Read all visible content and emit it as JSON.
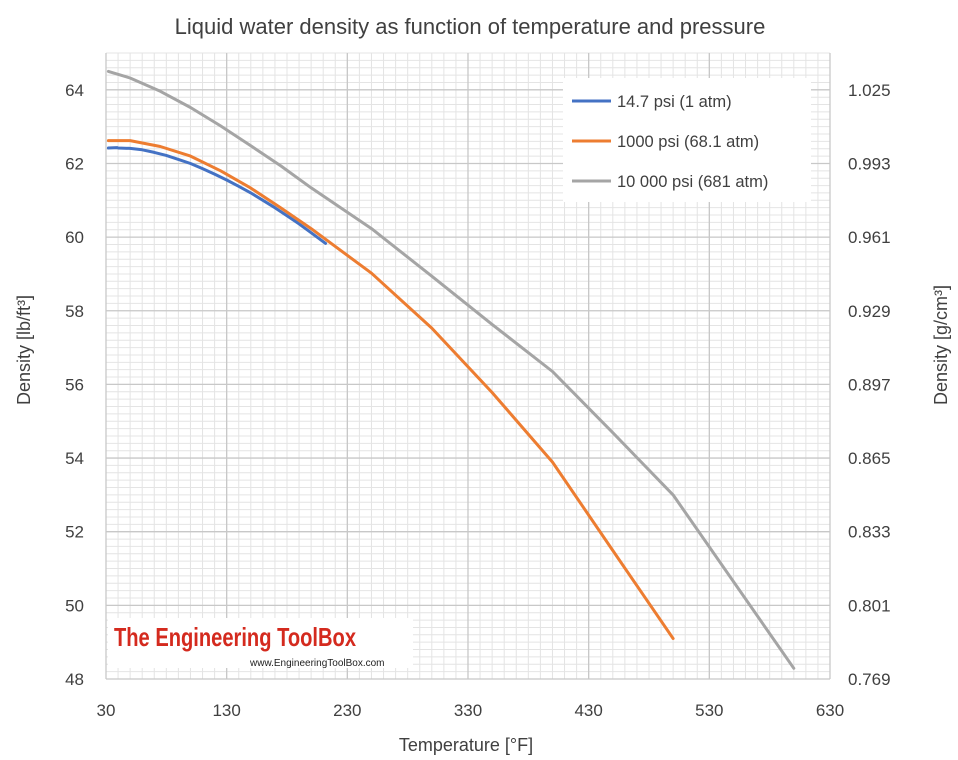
{
  "chart_data": {
    "type": "line",
    "title": "Liquid water density as function of temperature and pressure",
    "xlabel": "Temperature  [°F]",
    "ylabel": "Density  [lb/ft³]",
    "y2label": "Density [g/cm³]",
    "xlim": [
      30,
      630
    ],
    "ylim": [
      48,
      65
    ],
    "x_ticks": [
      30,
      130,
      230,
      330,
      430,
      530,
      630
    ],
    "y_ticks": [
      48,
      50,
      52,
      54,
      56,
      58,
      60,
      62,
      64
    ],
    "y2_tick_labels": [
      "0.769",
      "0.801",
      "0.833",
      "0.865",
      "0.897",
      "0.929",
      "0.961",
      "0.993",
      "1.025"
    ],
    "grid": true,
    "legend_position": "top-right",
    "series": [
      {
        "name": "14.7 psi (1 atm)",
        "color": "#4472c4",
        "x": [
          32,
          39,
          40,
          50,
          60,
          70,
          80,
          90,
          100,
          110,
          120,
          130,
          140,
          150,
          160,
          170,
          180,
          190,
          200,
          212
        ],
        "y": [
          62.42,
          62.43,
          62.42,
          62.41,
          62.37,
          62.3,
          62.22,
          62.11,
          62.0,
          61.86,
          61.71,
          61.55,
          61.38,
          61.2,
          61.0,
          60.8,
          60.58,
          60.36,
          60.12,
          59.83
        ]
      },
      {
        "name": "1000 psi (68.1 atm)",
        "color": "#ed7d31",
        "x": [
          32,
          50,
          75,
          100,
          125,
          150,
          175,
          200,
          250,
          300,
          350,
          400,
          450,
          500
        ],
        "y": [
          62.62,
          62.62,
          62.46,
          62.2,
          61.8,
          61.33,
          60.79,
          60.23,
          59.02,
          57.53,
          55.78,
          53.89,
          51.49,
          49.1
        ]
      },
      {
        "name": "10 000 psi (681 atm)",
        "color": "#a5a5a5",
        "x": [
          32,
          50,
          75,
          100,
          125,
          150,
          175,
          200,
          250,
          300,
          350,
          400,
          450,
          500,
          600
        ],
        "y": [
          64.5,
          64.32,
          63.96,
          63.52,
          63.02,
          62.48,
          61.93,
          61.34,
          60.23,
          58.94,
          57.63,
          56.35,
          54.69,
          53.0,
          48.29
        ]
      }
    ]
  },
  "watermark": {
    "name": "The Engineering ToolBox",
    "url": "www.EngineeringToolBox.com"
  }
}
